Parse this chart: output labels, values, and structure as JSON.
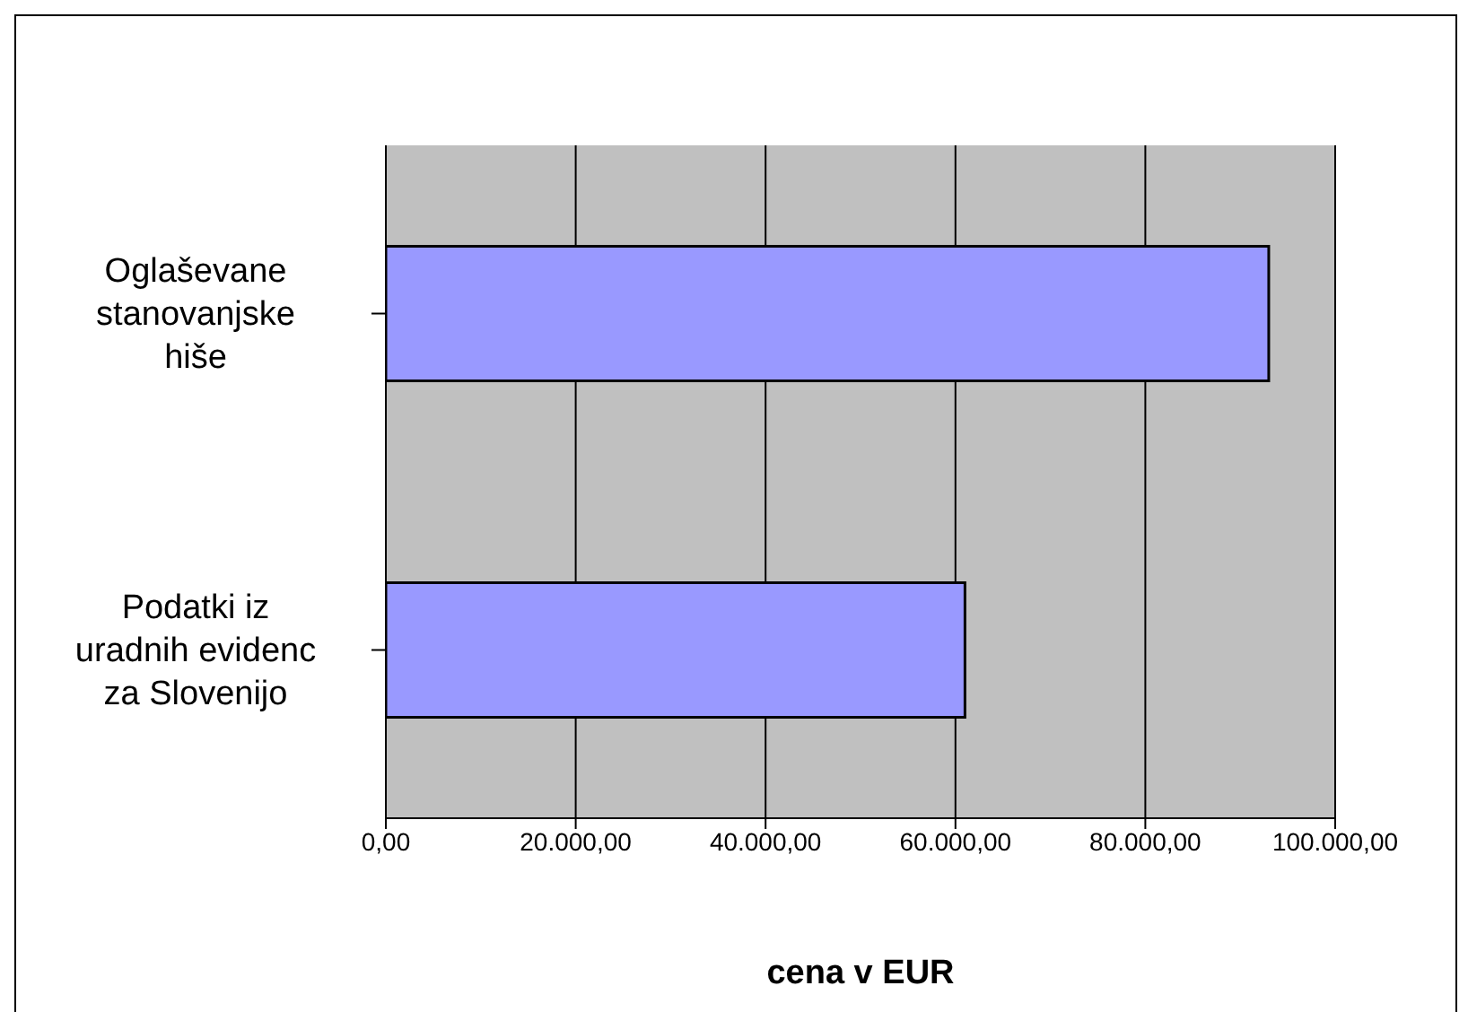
{
  "chart_data": {
    "type": "bar",
    "orientation": "horizontal",
    "xlabel": "cena v EUR",
    "categories": [
      "Oglaševane stanovanjske hiše",
      "Podatki iz uradnih evidenc za Slovenijo"
    ],
    "values": [
      93000,
      61000
    ],
    "color": "#9999ff",
    "xlim": [
      0,
      100000
    ],
    "xticks": [
      {
        "value": 0,
        "label": "0,00"
      },
      {
        "value": 20000,
        "label": "20.000,00"
      },
      {
        "value": 40000,
        "label": "40.000,00"
      },
      {
        "value": 60000,
        "label": "60.000,00"
      },
      {
        "value": 80000,
        "label": "80.000,00"
      },
      {
        "value": 100000,
        "label": "100.000,00"
      }
    ],
    "grid": "x",
    "legend": false
  }
}
